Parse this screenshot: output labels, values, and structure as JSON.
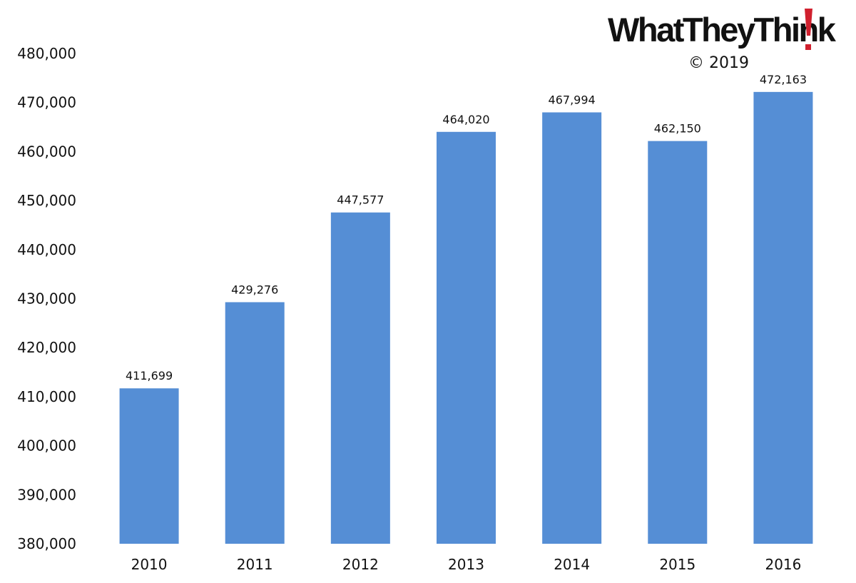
{
  "branding": {
    "logo_text": "WhatTheyThink",
    "logo_icon": "exclamation-mark-icon",
    "logo_accent_color": "#d0202e",
    "copyright": "© 2019"
  },
  "chart_data": {
    "type": "bar",
    "title": "",
    "xlabel": "",
    "ylabel": "",
    "categories": [
      "2010",
      "2011",
      "2012",
      "2013",
      "2014",
      "2015",
      "2016"
    ],
    "values": [
      411699,
      429276,
      447577,
      464020,
      467994,
      462150,
      472163
    ],
    "data_labels": [
      "411,699",
      "429,276",
      "447,577",
      "464,020",
      "467,994",
      "462,150",
      "472,163"
    ],
    "ylim": [
      380000,
      480000
    ],
    "yticks": [
      380000,
      390000,
      400000,
      410000,
      420000,
      430000,
      440000,
      450000,
      460000,
      470000,
      480000
    ],
    "ytick_labels": [
      "380,000",
      "390,000",
      "400,000",
      "410,000",
      "420,000",
      "430,000",
      "440,000",
      "450,000",
      "460,000",
      "470,000",
      "480,000"
    ],
    "bar_color": "#558ed5",
    "grid": false,
    "legend": "none"
  }
}
